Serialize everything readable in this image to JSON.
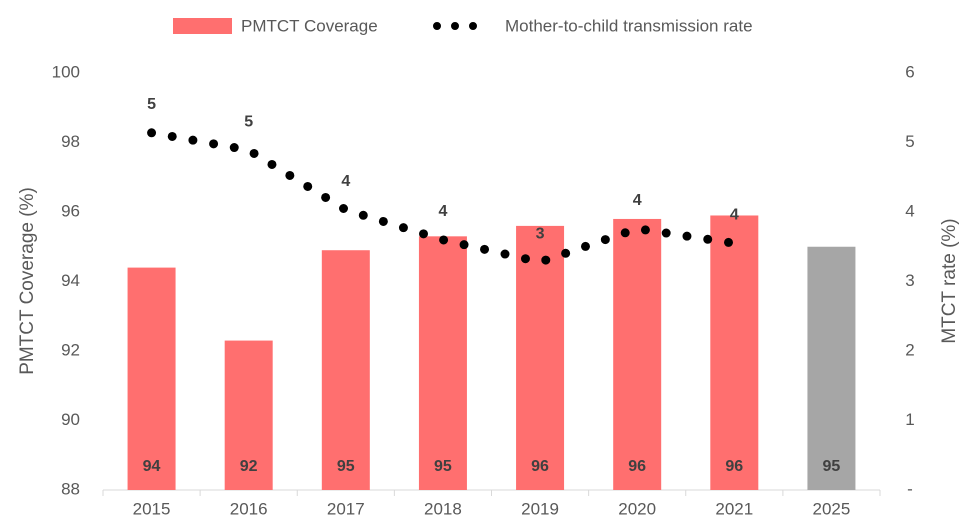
{
  "chart_data": {
    "type": "bar_line",
    "categories": [
      "2015",
      "2016",
      "2017",
      "2018",
      "2019",
      "2020",
      "2021",
      "2025"
    ],
    "series": [
      {
        "name": "PMTCT Coverage",
        "type": "bar",
        "color": "#ff6f6f",
        "colors": [
          "#ff6f6f",
          "#ff6f6f",
          "#ff6f6f",
          "#ff6f6f",
          "#ff6f6f",
          "#ff6f6f",
          "#ff6f6f",
          "#a6a6a6"
        ],
        "values": [
          94.4,
          92.3,
          94.9,
          95.3,
          95.6,
          95.8,
          95.9,
          95.0
        ],
        "value_labels": [
          "94",
          "92",
          "95",
          "95",
          "96",
          "96",
          "96",
          "95"
        ]
      },
      {
        "name": "Mother-to-child transmission rate",
        "type": "line",
        "axis": "y2",
        "color": "#000000",
        "line_style": "dotted",
        "values": [
          5.14,
          4.89,
          4.03,
          3.6,
          3.28,
          3.76,
          3.55,
          null
        ],
        "value_labels": [
          "5",
          "5",
          "4",
          "4",
          "3",
          "4",
          "4",
          null
        ]
      }
    ],
    "ylabel": "PMTCT Coverage (%)",
    "y2label": "MTCT rate (%)",
    "ylim": [
      88,
      100
    ],
    "yticks": [
      88,
      90,
      92,
      94,
      96,
      98,
      100
    ],
    "y2lim": [
      0,
      6
    ],
    "y2ticks": [
      {
        "value": 0,
        "label": "-"
      },
      1,
      2,
      3,
      4,
      5,
      6
    ],
    "grid": false,
    "legend": "top"
  }
}
